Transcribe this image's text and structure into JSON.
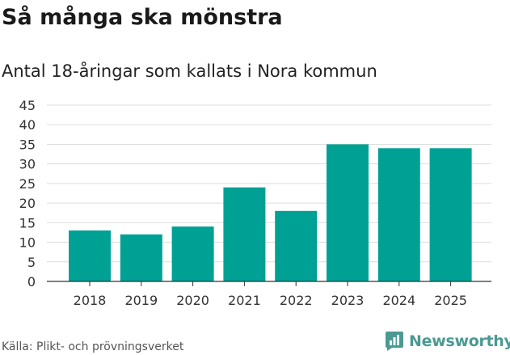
{
  "title": "Så många ska mönstra",
  "subtitle": "Antal 18-åringar som kallats i Nora kommun",
  "source": "Källa: Plikt- och prövningsverket",
  "brand": {
    "name": "Newsworthy",
    "color": "#4a9a92",
    "icon": "newsworthy-logo-icon"
  },
  "colors": {
    "bar": "#00a195",
    "grid": "#dddddd",
    "axis": "#333333"
  },
  "chart_data": {
    "type": "bar",
    "categories": [
      "2018",
      "2019",
      "2020",
      "2021",
      "2022",
      "2023",
      "2024",
      "2025"
    ],
    "values": [
      13,
      12,
      14,
      24,
      18,
      35,
      34,
      34
    ],
    "title": "Så många ska mönstra",
    "subtitle": "Antal 18-åringar som kallats i Nora kommun",
    "xlabel": "",
    "ylabel": "",
    "ylim": [
      0,
      45
    ],
    "yticks": [
      0,
      5,
      10,
      15,
      20,
      25,
      30,
      35,
      40,
      45
    ],
    "grid": true,
    "legend": "none"
  }
}
